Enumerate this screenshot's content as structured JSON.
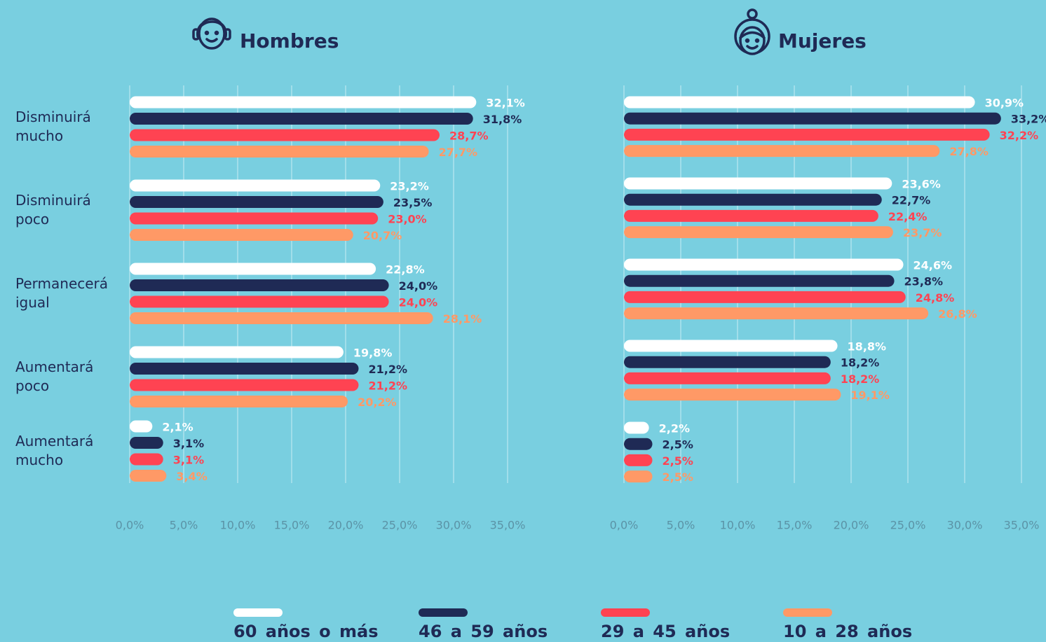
{
  "chart_data": [
    {
      "type": "hbar",
      "title": "Hombres",
      "categories": [
        "Disminuirá mucho",
        "Disminuirá poco",
        "Permanecerá igual",
        "Aumentará poco",
        "Aumentará mucho"
      ],
      "series": [
        {
          "name": "60 años o más",
          "color": "#ffffff",
          "values": [
            32.1,
            23.2,
            22.8,
            19.8,
            2.1
          ],
          "value_labels": [
            "32,1%",
            "23,2%",
            "22,8%",
            "19,8%",
            "2,1%"
          ]
        },
        {
          "name": "46 a 59 años",
          "color": "#1f2a55",
          "values": [
            31.8,
            23.5,
            24.0,
            21.2,
            3.1
          ],
          "value_labels": [
            "31,8%",
            "23,5%",
            "24,0%",
            "21,2%",
            "3,1%"
          ]
        },
        {
          "name": "29 a 45 años",
          "color": "#ff4352",
          "values": [
            28.7,
            23.0,
            24.0,
            21.2,
            3.1
          ],
          "value_labels": [
            "28,7%",
            "23,0%",
            "24,0%",
            "21,2%",
            "3,1%"
          ]
        },
        {
          "name": "10 a 28 años",
          "color": "#ff9966",
          "values": [
            27.7,
            20.7,
            28.1,
            20.2,
            3.4
          ],
          "value_labels": [
            "27,7%",
            "20,7%",
            "28,1%",
            "20,2%",
            "3,4%"
          ]
        }
      ],
      "xlim": [
        0,
        35
      ],
      "xticks": [
        {
          "value": 0,
          "label": "0,0%"
        },
        {
          "value": 5,
          "label": "5,0%"
        },
        {
          "value": 10,
          "label": "10,0%"
        },
        {
          "value": 15,
          "label": "15,0%"
        },
        {
          "value": 20,
          "label": "20,0%"
        },
        {
          "value": 25,
          "label": "25,0%"
        },
        {
          "value": 30,
          "label": "30,0%"
        },
        {
          "value": 35,
          "label": "35,0%"
        }
      ],
      "grid": true
    },
    {
      "type": "hbar",
      "title": "Mujeres",
      "series": [
        {
          "color": "#ffffff",
          "values": [
            30.9,
            23.6,
            24.6,
            18.8,
            2.2
          ],
          "value_labels": [
            "30,9%",
            "23,6%",
            "24,6%",
            "18,8%",
            "2,2%"
          ]
        },
        {
          "color": "#1f2a55",
          "values": [
            33.2,
            22.7,
            23.8,
            18.2,
            2.5
          ],
          "value_labels": [
            "33,2%",
            "22,7%",
            "23,8%",
            "18,2%",
            "2,5%"
          ]
        },
        {
          "color": "#ff4352",
          "values": [
            32.2,
            22.4,
            24.8,
            18.2,
            2.5
          ],
          "value_labels": [
            "32,2%",
            "22,4%",
            "24,8%",
            "18,2%",
            "2,5%"
          ]
        },
        {
          "color": "#ff9966",
          "values": [
            27.8,
            23.7,
            26.8,
            19.1,
            2.5
          ],
          "value_labels": [
            "27,8%",
            "23,7%",
            "26,8%",
            "19,1%",
            "2,5%"
          ]
        }
      ],
      "xlim": [
        0,
        35
      ],
      "xticks": [
        {
          "value": 0,
          "label": "0,0%"
        },
        {
          "value": 5,
          "label": "5,0%"
        },
        {
          "value": 10,
          "label": "10,0%"
        },
        {
          "value": 15,
          "label": "15,0%"
        },
        {
          "value": 20,
          "label": "20,0%"
        },
        {
          "value": 25,
          "label": "25,0%"
        },
        {
          "value": 30,
          "label": "30,0%"
        },
        {
          "value": 35,
          "label": "35,0%"
        }
      ],
      "grid": true
    }
  ]
}
